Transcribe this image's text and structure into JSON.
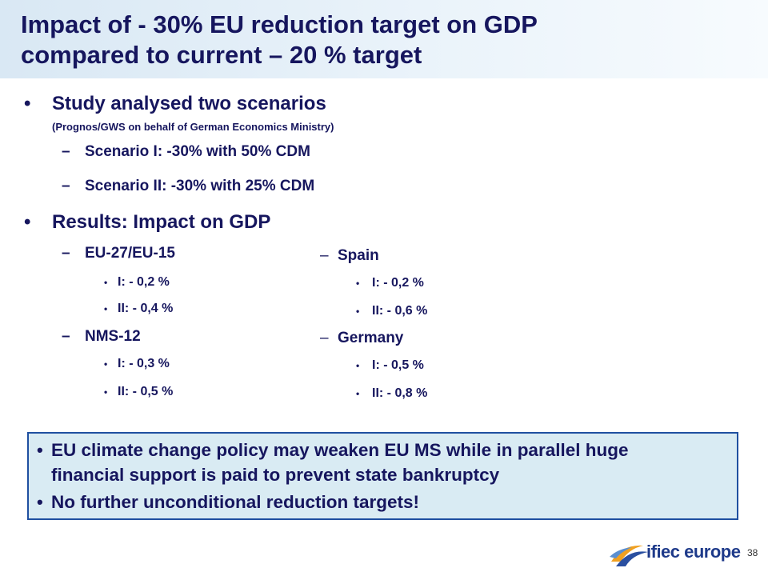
{
  "slide": {
    "title_line1": "Impact of - 30% EU reduction target on GDP",
    "title_line2": "compared to current – 20 % target",
    "bullet_study": "Study analysed two scenarios",
    "study_source": "(Prognos/GWS on behalf of German Economics Ministry)",
    "scenario_1": "Scenario I: -30% with 50% CDM",
    "scenario_2": "Scenario II: -30% with 25% CDM",
    "bullet_results": "Results: Impact on GDP",
    "left_groups": [
      {
        "name": "EU-27/EU-15",
        "items": [
          "I: - 0,2 %",
          "II: - 0,4 %"
        ]
      },
      {
        "name": "NMS-12",
        "items": [
          "I: - 0,3 %",
          "II: - 0,5 %"
        ]
      }
    ],
    "right_groups": [
      {
        "name": "Spain",
        "items": [
          "I: - 0,2 %",
          "II: - 0,6 %"
        ]
      },
      {
        "name": "Germany",
        "items": [
          "I: - 0,5 %",
          "II: - 0,8 %"
        ]
      }
    ],
    "callout": {
      "line1": "EU climate change policy may weaken EU MS while in parallel huge",
      "line2": "financial support is paid to prevent state bankruptcy",
      "line3": "No further unconditional reduction targets!"
    },
    "logo_text": "ifiec europe",
    "page_number": "38",
    "markers": {
      "bullet": "•",
      "dash": "–"
    }
  }
}
